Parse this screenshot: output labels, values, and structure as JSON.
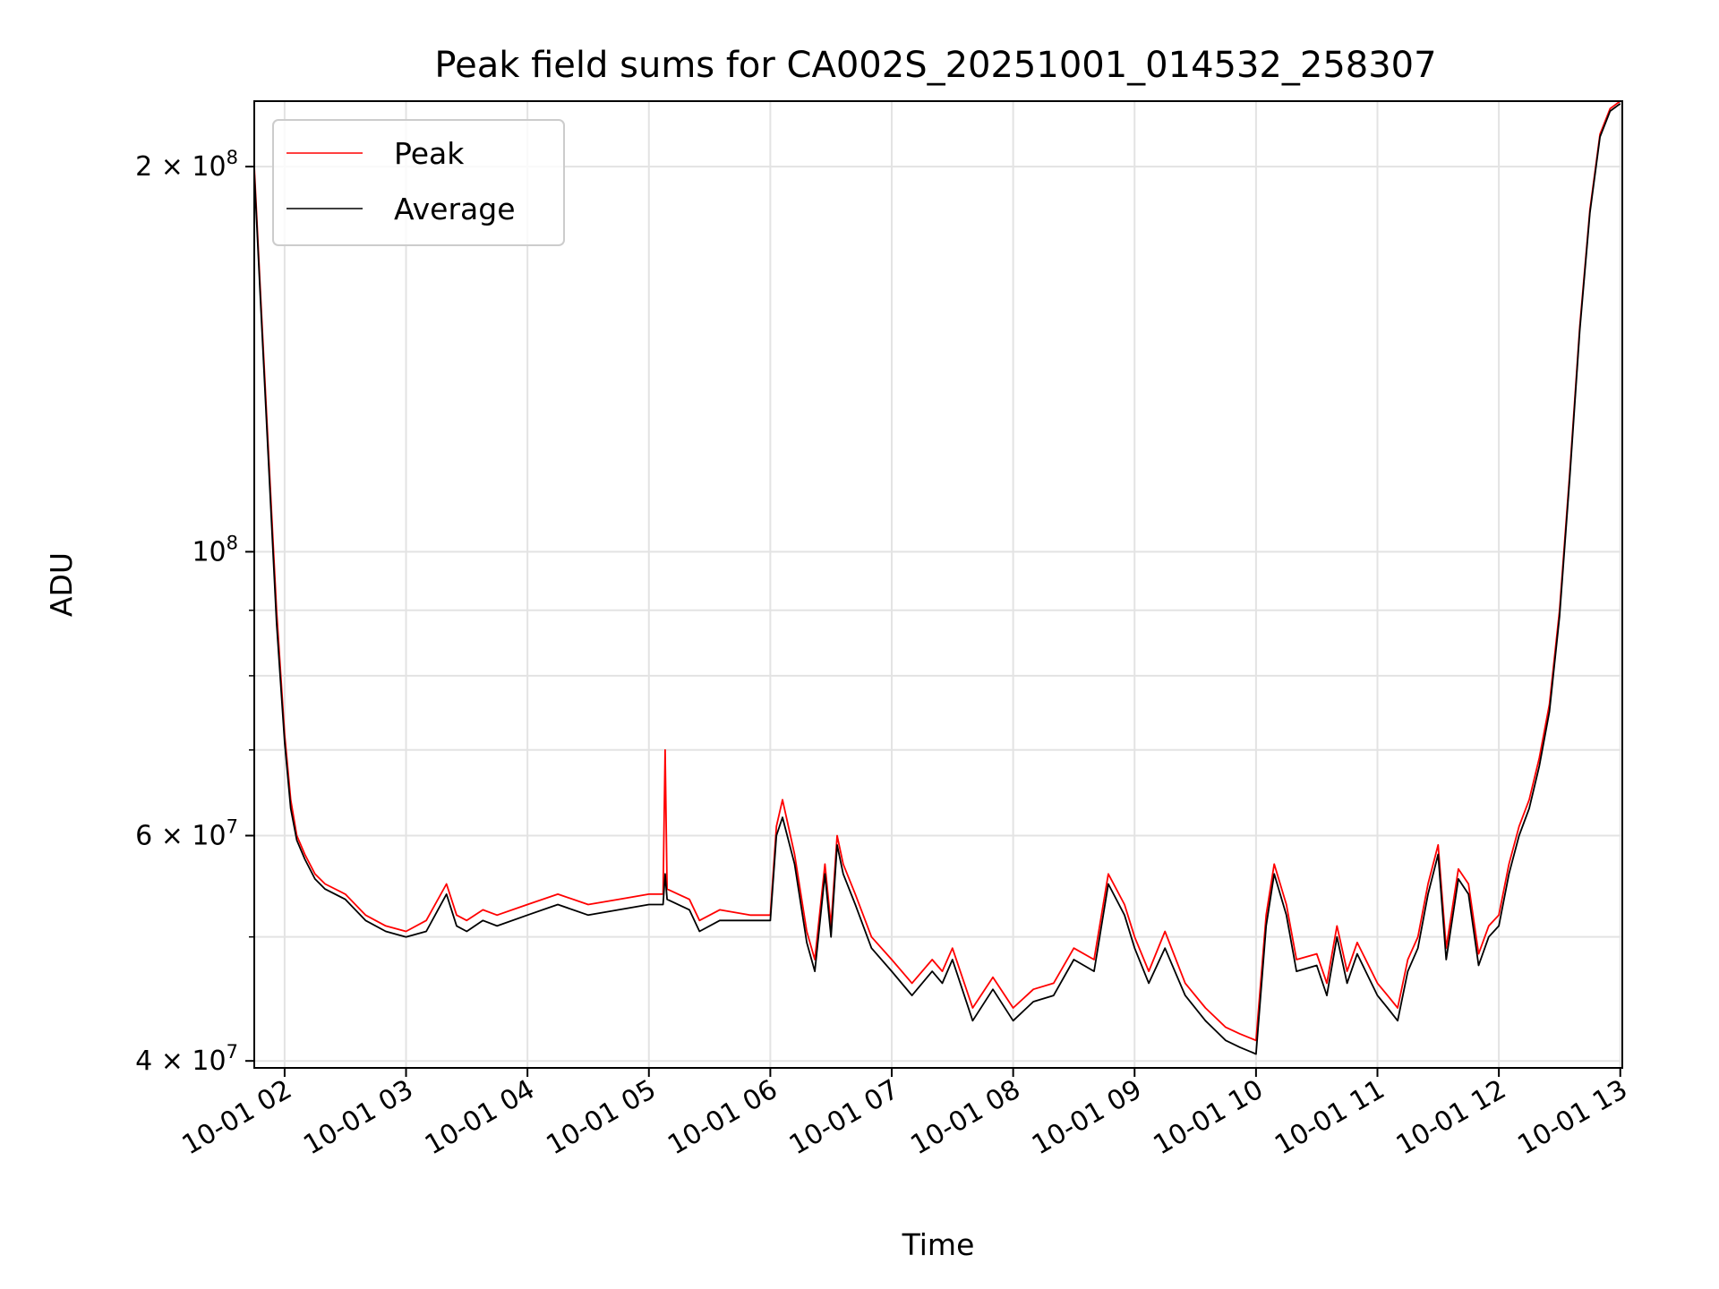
{
  "chart_data": {
    "type": "line",
    "title": "Peak field sums for CA002S_20251001_014532_258307",
    "xlabel": "Time",
    "ylabel": "ADU",
    "y_scale": "log",
    "ylim": [
      39500000,
      225000000
    ],
    "xlim": [
      "2025-10-01 01:45",
      "2025-10-01 13:01"
    ],
    "grid": true,
    "legend_position": "upper-left",
    "x_ticks": [
      {
        "t": "2025-10-01 02:00",
        "label": "10-01 02"
      },
      {
        "t": "2025-10-01 03:00",
        "label": "10-01 03"
      },
      {
        "t": "2025-10-01 04:00",
        "label": "10-01 04"
      },
      {
        "t": "2025-10-01 05:00",
        "label": "10-01 05"
      },
      {
        "t": "2025-10-01 06:00",
        "label": "10-01 06"
      },
      {
        "t": "2025-10-01 07:00",
        "label": "10-01 07"
      },
      {
        "t": "2025-10-01 08:00",
        "label": "10-01 08"
      },
      {
        "t": "2025-10-01 09:00",
        "label": "10-01 09"
      },
      {
        "t": "2025-10-01 10:00",
        "label": "10-01 10"
      },
      {
        "t": "2025-10-01 11:00",
        "label": "10-01 11"
      },
      {
        "t": "2025-10-01 12:00",
        "label": "10-01 12"
      },
      {
        "t": "2025-10-01 13:00",
        "label": "10-01 13"
      }
    ],
    "y_ticks_major": [
      {
        "v": 40000000,
        "base": "4 × 10",
        "exp": "7"
      },
      {
        "v": 60000000,
        "base": "6 × 10",
        "exp": "7"
      },
      {
        "v": 100000000,
        "base": "10",
        "exp": "8"
      },
      {
        "v": 200000000,
        "base": "2 × 10",
        "exp": "8"
      }
    ],
    "y_ticks_minor": [
      50000000,
      70000000,
      80000000,
      90000000
    ],
    "series": [
      {
        "name": "Peak",
        "color": "#ff0000",
        "x": [
          "2025-10-01 01:45",
          "2025-10-01 01:48",
          "2025-10-01 01:52",
          "2025-10-01 01:56",
          "2025-10-01 02:00",
          "2025-10-01 02:03",
          "2025-10-01 02:06",
          "2025-10-01 02:10",
          "2025-10-01 02:15",
          "2025-10-01 02:20",
          "2025-10-01 02:30",
          "2025-10-01 02:40",
          "2025-10-01 02:50",
          "2025-10-01 03:00",
          "2025-10-01 03:10",
          "2025-10-01 03:20",
          "2025-10-01 03:25",
          "2025-10-01 03:30",
          "2025-10-01 03:38",
          "2025-10-01 03:45",
          "2025-10-01 04:00",
          "2025-10-01 04:15",
          "2025-10-01 04:30",
          "2025-10-01 04:45",
          "2025-10-01 05:00",
          "2025-10-01 05:07",
          "2025-10-01 05:08",
          "2025-10-01 05:09",
          "2025-10-01 05:20",
          "2025-10-01 05:25",
          "2025-10-01 05:35",
          "2025-10-01 05:50",
          "2025-10-01 06:00",
          "2025-10-01 06:03",
          "2025-10-01 06:06",
          "2025-10-01 06:12",
          "2025-10-01 06:18",
          "2025-10-01 06:22",
          "2025-10-01 06:27",
          "2025-10-01 06:30",
          "2025-10-01 06:33",
          "2025-10-01 06:36",
          "2025-10-01 06:42",
          "2025-10-01 06:50",
          "2025-10-01 07:00",
          "2025-10-01 07:10",
          "2025-10-01 07:20",
          "2025-10-01 07:25",
          "2025-10-01 07:30",
          "2025-10-01 07:40",
          "2025-10-01 07:50",
          "2025-10-01 08:00",
          "2025-10-01 08:10",
          "2025-10-01 08:20",
          "2025-10-01 08:30",
          "2025-10-01 08:40",
          "2025-10-01 08:47",
          "2025-10-01 08:55",
          "2025-10-01 09:00",
          "2025-10-01 09:07",
          "2025-10-01 09:15",
          "2025-10-01 09:25",
          "2025-10-01 09:35",
          "2025-10-01 09:45",
          "2025-10-01 09:52",
          "2025-10-01 10:00",
          "2025-10-01 10:05",
          "2025-10-01 10:09",
          "2025-10-01 10:15",
          "2025-10-01 10:20",
          "2025-10-01 10:30",
          "2025-10-01 10:35",
          "2025-10-01 10:40",
          "2025-10-01 10:45",
          "2025-10-01 10:50",
          "2025-10-01 11:00",
          "2025-10-01 11:05",
          "2025-10-01 11:10",
          "2025-10-01 11:15",
          "2025-10-01 11:20",
          "2025-10-01 11:25",
          "2025-10-01 11:30",
          "2025-10-01 11:34",
          "2025-10-01 11:40",
          "2025-10-01 11:45",
          "2025-10-01 11:50",
          "2025-10-01 11:55",
          "2025-10-01 12:00",
          "2025-10-01 12:05",
          "2025-10-01 12:10",
          "2025-10-01 12:15",
          "2025-10-01 12:20",
          "2025-10-01 12:25",
          "2025-10-01 12:30",
          "2025-10-01 12:35",
          "2025-10-01 12:40",
          "2025-10-01 12:45",
          "2025-10-01 12:50",
          "2025-10-01 12:55",
          "2025-10-01 13:00"
        ],
        "y": [
          200000000,
          160000000,
          120000000,
          90000000,
          72000000,
          64000000,
          60000000,
          58000000,
          56000000,
          55000000,
          54000000,
          52000000,
          51000000,
          50500000,
          51500000,
          55000000,
          52000000,
          51500000,
          52500000,
          52000000,
          53000000,
          54000000,
          53000000,
          53500000,
          54000000,
          54000000,
          70000000,
          54500000,
          53500000,
          51500000,
          52500000,
          52000000,
          52000000,
          61000000,
          64000000,
          58000000,
          50500000,
          48000000,
          57000000,
          51000000,
          60000000,
          57000000,
          54000000,
          50000000,
          48000000,
          46000000,
          48000000,
          47000000,
          49000000,
          44000000,
          46500000,
          44000000,
          45500000,
          46000000,
          49000000,
          48000000,
          56000000,
          53000000,
          50000000,
          47000000,
          50500000,
          46000000,
          44000000,
          42500000,
          42000000,
          41500000,
          52000000,
          57000000,
          53000000,
          48000000,
          48500000,
          46000000,
          51000000,
          47000000,
          49500000,
          46000000,
          45000000,
          44000000,
          48000000,
          50000000,
          55000000,
          59000000,
          49000000,
          56500000,
          55000000,
          48500000,
          51000000,
          52000000,
          57000000,
          61000000,
          64000000,
          69000000,
          76000000,
          90000000,
          115000000,
          150000000,
          185000000,
          212000000,
          222000000,
          225000000
        ]
      },
      {
        "name": "Average",
        "color": "#000000",
        "x": [
          "2025-10-01 01:45",
          "2025-10-01 01:48",
          "2025-10-01 01:52",
          "2025-10-01 01:56",
          "2025-10-01 02:00",
          "2025-10-01 02:03",
          "2025-10-01 02:06",
          "2025-10-01 02:10",
          "2025-10-01 02:15",
          "2025-10-01 02:20",
          "2025-10-01 02:30",
          "2025-10-01 02:40",
          "2025-10-01 02:50",
          "2025-10-01 03:00",
          "2025-10-01 03:10",
          "2025-10-01 03:20",
          "2025-10-01 03:25",
          "2025-10-01 03:30",
          "2025-10-01 03:38",
          "2025-10-01 03:45",
          "2025-10-01 04:00",
          "2025-10-01 04:15",
          "2025-10-01 04:30",
          "2025-10-01 04:45",
          "2025-10-01 05:00",
          "2025-10-01 05:07",
          "2025-10-01 05:08",
          "2025-10-01 05:09",
          "2025-10-01 05:20",
          "2025-10-01 05:25",
          "2025-10-01 05:35",
          "2025-10-01 05:50",
          "2025-10-01 06:00",
          "2025-10-01 06:03",
          "2025-10-01 06:06",
          "2025-10-01 06:12",
          "2025-10-01 06:18",
          "2025-10-01 06:22",
          "2025-10-01 06:27",
          "2025-10-01 06:30",
          "2025-10-01 06:33",
          "2025-10-01 06:36",
          "2025-10-01 06:42",
          "2025-10-01 06:50",
          "2025-10-01 07:00",
          "2025-10-01 07:10",
          "2025-10-01 07:20",
          "2025-10-01 07:25",
          "2025-10-01 07:30",
          "2025-10-01 07:40",
          "2025-10-01 07:50",
          "2025-10-01 08:00",
          "2025-10-01 08:10",
          "2025-10-01 08:20",
          "2025-10-01 08:30",
          "2025-10-01 08:40",
          "2025-10-01 08:47",
          "2025-10-01 08:55",
          "2025-10-01 09:00",
          "2025-10-01 09:07",
          "2025-10-01 09:15",
          "2025-10-01 09:25",
          "2025-10-01 09:35",
          "2025-10-01 09:45",
          "2025-10-01 09:52",
          "2025-10-01 10:00",
          "2025-10-01 10:05",
          "2025-10-01 10:09",
          "2025-10-01 10:15",
          "2025-10-01 10:20",
          "2025-10-01 10:30",
          "2025-10-01 10:35",
          "2025-10-01 10:40",
          "2025-10-01 10:45",
          "2025-10-01 10:50",
          "2025-10-01 11:00",
          "2025-10-01 11:05",
          "2025-10-01 11:10",
          "2025-10-01 11:15",
          "2025-10-01 11:20",
          "2025-10-01 11:25",
          "2025-10-01 11:30",
          "2025-10-01 11:34",
          "2025-10-01 11:40",
          "2025-10-01 11:45",
          "2025-10-01 11:50",
          "2025-10-01 11:55",
          "2025-10-01 12:00",
          "2025-10-01 12:05",
          "2025-10-01 12:10",
          "2025-10-01 12:15",
          "2025-10-01 12:20",
          "2025-10-01 12:25",
          "2025-10-01 12:30",
          "2025-10-01 12:35",
          "2025-10-01 12:40",
          "2025-10-01 12:45",
          "2025-10-01 12:50",
          "2025-10-01 12:55",
          "2025-10-01 13:00"
        ],
        "y": [
          198000000,
          158000000,
          118000000,
          88000000,
          71000000,
          63000000,
          59500000,
          57500000,
          55500000,
          54500000,
          53500000,
          51500000,
          50500000,
          50000000,
          50500000,
          54000000,
          51000000,
          50500000,
          51500000,
          51000000,
          52000000,
          53000000,
          52000000,
          52500000,
          53000000,
          53000000,
          56000000,
          53500000,
          52500000,
          50500000,
          51500000,
          51500000,
          51500000,
          60000000,
          62000000,
          57000000,
          49500000,
          47000000,
          56000000,
          50000000,
          59000000,
          56000000,
          53000000,
          49000000,
          47000000,
          45000000,
          47000000,
          46000000,
          48000000,
          43000000,
          45500000,
          43000000,
          44500000,
          45000000,
          48000000,
          47000000,
          55000000,
          52000000,
          49000000,
          46000000,
          49000000,
          45000000,
          43000000,
          41500000,
          41000000,
          40500000,
          51000000,
          56000000,
          52000000,
          47000000,
          47500000,
          45000000,
          50000000,
          46000000,
          48500000,
          45000000,
          44000000,
          43000000,
          47000000,
          49000000,
          54000000,
          58000000,
          48000000,
          55500000,
          54000000,
          47500000,
          50000000,
          51000000,
          56000000,
          60000000,
          63000000,
          68000000,
          75000000,
          89000000,
          114000000,
          149000000,
          184000000,
          211000000,
          221000000,
          224000000
        ]
      }
    ]
  }
}
